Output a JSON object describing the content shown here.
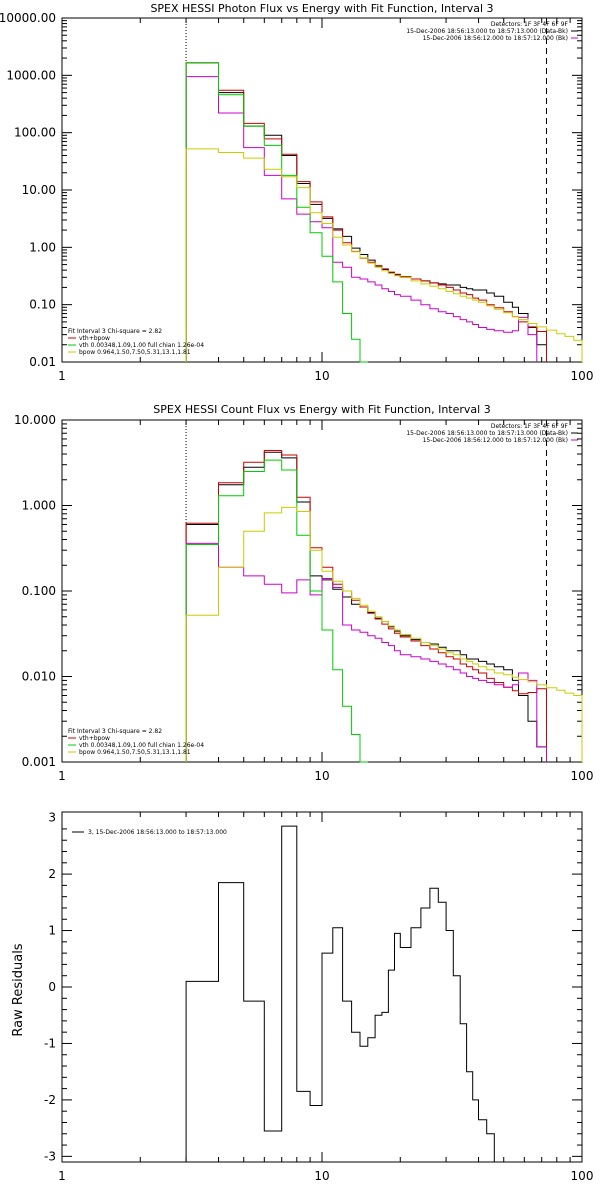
{
  "chart_data": [
    {
      "type": "line",
      "title": "SPEX HESSI Photon Flux vs Energy with Fit Function, Interval 3",
      "xlabel": "",
      "ylabel": "",
      "xscale": "log",
      "yscale": "log",
      "xlim": [
        1,
        100
      ],
      "ylim": [
        0.01,
        10000
      ],
      "x_ticks": [
        "1",
        "10",
        "100"
      ],
      "y_ticks": [
        "10000.00",
        "1000.00",
        "100.00",
        "10.00",
        "1.00",
        "0.10",
        "0.01"
      ],
      "y_tick_values": [
        10000,
        1000,
        100,
        10,
        1,
        0.1,
        0.01
      ],
      "vlines": [
        {
          "x": 3.0,
          "style": "dotted"
        },
        {
          "x": 73,
          "style": "dashed"
        }
      ],
      "legend_top": [
        "Detectors: 1F 3F 4F 6F 9F",
        "15-Dec-2006 18:56:13.000 to 18:57:13.000 (Data-Bk)",
        "15-Dec-2006 18:56:12.000 to 18:57:12.000 (Bk)"
      ],
      "legend_top_colors": [
        "",
        "#000000",
        "#cc00cc"
      ],
      "legend_bottom": [
        "Fit Interval 3   Chi-square = 2.82",
        "vth+bpow",
        "vth 0.00348,1.09,1.00  full chian 1.26e-04",
        "bpow 0.964,1.50,7.50,5.31,13.1,1.81"
      ],
      "legend_bottom_colors": [
        "",
        "#cc0000",
        "#00cc00",
        "#cccc00"
      ],
      "edges": [
        3,
        4,
        5,
        6,
        7,
        8,
        9,
        10,
        11,
        12,
        13,
        14,
        15,
        16,
        17,
        18,
        19,
        20,
        22,
        24,
        26,
        28,
        30,
        32,
        34,
        36,
        38,
        40,
        43,
        46,
        50,
        54,
        57,
        62,
        67,
        73,
        80,
        86,
        93,
        100
      ],
      "series": [
        {
          "name": "Data-Bk",
          "color": "#000000",
          "values": [
            1650,
            500,
            130,
            90,
            40,
            13,
            5.6,
            3.2,
            2.1,
            1.55,
            0.97,
            0.75,
            0.6,
            0.46,
            0.41,
            0.36,
            0.33,
            0.3,
            0.28,
            0.26,
            0.24,
            0.23,
            0.22,
            0.22,
            0.2,
            0.19,
            0.18,
            0.18,
            0.16,
            0.14,
            0.11,
            0.09,
            0.07,
            0.04,
            0.02
          ]
        },
        {
          "name": "vth+bpow",
          "color": "#cc0000",
          "values": [
            1650,
            550,
            145,
            78,
            42,
            14,
            6.2,
            3.4,
            2.0,
            1.2,
            0.85,
            0.65,
            0.55,
            0.48,
            0.42,
            0.37,
            0.34,
            0.31,
            0.28,
            0.26,
            0.24,
            0.22,
            0.2,
            0.18,
            0.16,
            0.15,
            0.13,
            0.12,
            0.1,
            0.088,
            0.075,
            0.062,
            0.05,
            0.041,
            0.034
          ]
        },
        {
          "name": "Bk",
          "color": "#cc00cc",
          "values": [
            950,
            220,
            55,
            18,
            7,
            3.8,
            2.8,
            2.2,
            0.55,
            0.45,
            0.3,
            0.28,
            0.25,
            0.22,
            0.19,
            0.17,
            0.15,
            0.14,
            0.12,
            0.1,
            0.085,
            0.075,
            0.07,
            0.062,
            0.055,
            0.05,
            0.045,
            0.04,
            0.037,
            0.035,
            0.033,
            0.035,
            0.06,
            0.03
          ]
        },
        {
          "name": "vth",
          "color": "#00cc00",
          "values": [
            1650,
            460,
            130,
            60,
            18,
            5,
            1.8,
            0.7,
            0.25,
            0.07,
            0.025,
            0.009
          ]
        },
        {
          "name": "bpow",
          "color": "#cccc00",
          "values": [
            52,
            45,
            36,
            23,
            17,
            11,
            4.0,
            2.6,
            1.5,
            1.1,
            0.84,
            0.66,
            0.53,
            0.45,
            0.39,
            0.35,
            0.32,
            0.3,
            0.26,
            0.23,
            0.21,
            0.19,
            0.17,
            0.155,
            0.14,
            0.13,
            0.12,
            0.11,
            0.095,
            0.083,
            0.072,
            0.062,
            0.055,
            0.047,
            0.041,
            0.036,
            0.031,
            0.028,
            0.024
          ]
        }
      ]
    },
    {
      "type": "line",
      "title": "SPEX HESSI Count Flux vs Energy with Fit Function, Interval 3",
      "xlabel": "",
      "ylabel": "",
      "xscale": "log",
      "yscale": "log",
      "xlim": [
        1,
        100
      ],
      "ylim": [
        0.001,
        10
      ],
      "x_ticks": [
        "1",
        "10",
        "100"
      ],
      "y_ticks": [
        "10.000",
        "1.000",
        "0.100",
        "0.010",
        "0.001"
      ],
      "y_tick_values": [
        10,
        1,
        0.1,
        0.01,
        0.001
      ],
      "vlines": [
        {
          "x": 3.0,
          "style": "dotted"
        },
        {
          "x": 73,
          "style": "dashed"
        }
      ],
      "legend_top": [
        "Detectors: 1F 3F 4F 6F 9F",
        "15-Dec-2006 18:56:13.000 to 18:57:13.000 (Data-Bk)",
        "15-Dec-2006 18:56:12.000 to 18:57:12.000 (Bk)"
      ],
      "legend_top_colors": [
        "",
        "#000000",
        "#cc00cc"
      ],
      "legend_bottom": [
        "Fit Interval 3   Chi-square = 2.82",
        "vth+bpow",
        "vth 0.00348,1.09,1.00  full chian 1.26e-04",
        "bpow 0.964,1.50,7.50,5.31,13.1,1.81"
      ],
      "legend_bottom_colors": [
        "",
        "#cc0000",
        "#00cc00",
        "#cccc00"
      ],
      "edges": [
        3,
        4,
        5,
        6,
        7,
        8,
        9,
        10,
        11,
        12,
        13,
        14,
        15,
        16,
        17,
        18,
        19,
        20,
        22,
        24,
        26,
        28,
        30,
        32,
        34,
        36,
        38,
        40,
        43,
        46,
        50,
        54,
        57,
        62,
        67,
        73,
        80,
        86,
        93,
        100
      ],
      "series": [
        {
          "name": "Data-Bk",
          "color": "#000000",
          "values": [
            0.6,
            1.75,
            2.8,
            4.2,
            3.6,
            1.1,
            0.15,
            0.135,
            0.105,
            0.085,
            0.07,
            0.065,
            0.056,
            0.048,
            0.044,
            0.038,
            0.034,
            0.03,
            0.027,
            0.025,
            0.024,
            0.022,
            0.02,
            0.02,
            0.018,
            0.016,
            0.016,
            0.015,
            0.014,
            0.013,
            0.012,
            0.009,
            0.006,
            0.003,
            0.0015
          ]
        },
        {
          "name": "vth+bpow",
          "color": "#cc0000",
          "values": [
            0.62,
            1.85,
            3.2,
            4.4,
            3.9,
            1.25,
            0.32,
            0.19,
            0.12,
            0.1,
            0.078,
            0.065,
            0.055,
            0.047,
            0.041,
            0.036,
            0.032,
            0.029,
            0.026,
            0.023,
            0.021,
            0.019,
            0.017,
            0.016,
            0.014,
            0.013,
            0.012,
            0.011,
            0.0095,
            0.0085,
            0.0075,
            0.0068,
            0.0063,
            0.0065,
            0.0072
          ]
        },
        {
          "name": "Bk",
          "color": "#cc00cc",
          "values": [
            0.36,
            0.19,
            0.15,
            0.12,
            0.095,
            0.135,
            0.09,
            0.14,
            0.11,
            0.04,
            0.035,
            0.033,
            0.03,
            0.028,
            0.025,
            0.023,
            0.02,
            0.018,
            0.017,
            0.016,
            0.015,
            0.014,
            0.013,
            0.012,
            0.011,
            0.01,
            0.0095,
            0.009,
            0.0085,
            0.008,
            0.0075,
            0.008,
            0.011,
            0.009,
            0.0015
          ]
        },
        {
          "name": "vth",
          "color": "#00cc00",
          "values": [
            0.35,
            1.3,
            2.5,
            3.4,
            2.6,
            0.45,
            0.1,
            0.035,
            0.012,
            0.0045,
            0.0021,
            0.0009
          ]
        },
        {
          "name": "bpow",
          "color": "#cccc00",
          "values": [
            0.052,
            0.19,
            0.5,
            0.82,
            0.95,
            0.85,
            0.3,
            0.17,
            0.13,
            0.1,
            0.082,
            0.068,
            0.058,
            0.05,
            0.044,
            0.039,
            0.035,
            0.031,
            0.028,
            0.025,
            0.023,
            0.021,
            0.019,
            0.018,
            0.016,
            0.015,
            0.014,
            0.013,
            0.012,
            0.011,
            0.0105,
            0.0098,
            0.0092,
            0.0087,
            0.008,
            0.0074,
            0.0069,
            0.0064,
            0.006
          ]
        }
      ]
    },
    {
      "type": "line",
      "title": "",
      "xlabel": "",
      "ylabel": "Raw Residuals",
      "xscale": "log",
      "yscale": "linear",
      "xlim": [
        1,
        100
      ],
      "ylim": [
        -3.1,
        3.1
      ],
      "x_ticks": [
        "1",
        "10",
        "100"
      ],
      "y_ticks": [
        "3",
        "2",
        "1",
        "0",
        "-1",
        "-2",
        "-3"
      ],
      "y_tick_values": [
        3,
        2,
        1,
        0,
        -1,
        -2,
        -3
      ],
      "legend_top": [
        "3, 15-Dec-2006 18:56:13.000 to 18:57:13.000"
      ],
      "edges": [
        3,
        4,
        5,
        6,
        7,
        8,
        9,
        10,
        11,
        12,
        13,
        14,
        15,
        16,
        17,
        18,
        19,
        20,
        22,
        24,
        26,
        28,
        30,
        32,
        34,
        36,
        38,
        40,
        43,
        46,
        50,
        54,
        57,
        62,
        67,
        73
      ],
      "series": [
        {
          "name": "3, 15-Dec-2006 18:56:13.000 to 18:57:13.000",
          "color": "#000000",
          "values": [
            0.1,
            1.85,
            -0.25,
            -2.55,
            2.85,
            -1.85,
            -2.1,
            0.6,
            1.05,
            -0.25,
            -0.8,
            -1.05,
            -0.9,
            -0.5,
            -0.45,
            0.3,
            0.95,
            0.7,
            1.05,
            1.4,
            1.75,
            1.5,
            1.0,
            0.2,
            -0.65,
            -1.5,
            -2.0,
            -2.35,
            -2.6,
            -3.1,
            -3.1,
            -3.1,
            -3.1,
            -3.1,
            -3.1
          ]
        }
      ]
    }
  ]
}
